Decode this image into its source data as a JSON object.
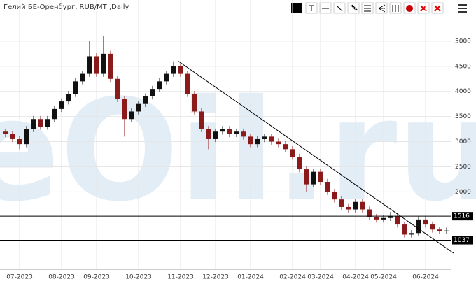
{
  "chart_data": {
    "type": "candlestick",
    "title": "Гелий БЕ-Оренбург, RUB/MT ,Daily",
    "watermark": "eOil.ru",
    "categories": [
      null,
      null,
      "07-2023",
      null,
      null,
      null,
      null,
      null,
      "08-2023",
      null,
      null,
      null,
      null,
      "09-2023",
      null,
      null,
      null,
      null,
      null,
      "10-2023",
      null,
      null,
      null,
      null,
      null,
      "11-2023",
      null,
      null,
      null,
      null,
      "12-2023",
      null,
      null,
      null,
      null,
      "01-2024",
      null,
      null,
      null,
      null,
      null,
      "02-2024",
      null,
      null,
      null,
      "03-2024",
      null,
      null,
      null,
      null,
      "04-2024",
      null,
      null,
      null,
      "05-2024",
      null,
      null,
      null,
      null,
      null,
      "06-2024",
      null,
      null,
      null
    ],
    "open": [
      3200,
      3150,
      3050,
      2950,
      3250,
      3450,
      3300,
      3450,
      3650,
      3800,
      3950,
      4200,
      4350,
      4700,
      4350,
      4750,
      4250,
      3850,
      3450,
      3600,
      3750,
      3900,
      4050,
      4200,
      4350,
      4500,
      4350,
      3950,
      3600,
      3250,
      3050,
      3200,
      3250,
      3150,
      3200,
      3100,
      2950,
      3050,
      3100,
      3000,
      2950,
      2850,
      2700,
      2450,
      2150,
      2400,
      2200,
      2000,
      1850,
      1700,
      1650,
      1800,
      1650,
      1500,
      1450,
      1480,
      1520,
      1350,
      1150,
      1180,
      1450,
      1350,
      1250,
      1220
    ],
    "high": [
      3260,
      3210,
      3110,
      3310,
      3510,
      3510,
      3510,
      3710,
      3860,
      4010,
      4260,
      4410,
      5000,
      4760,
      5100,
      4810,
      4310,
      3910,
      3660,
      3810,
      3960,
      4110,
      4260,
      4410,
      4600,
      4560,
      4410,
      4010,
      3660,
      3310,
      3260,
      3310,
      3310,
      3260,
      3260,
      3160,
      3110,
      3160,
      3160,
      3060,
      3010,
      2910,
      2760,
      2510,
      2460,
      2460,
      2260,
      2060,
      1910,
      1760,
      1860,
      1860,
      1710,
      1560,
      1540,
      1600,
      1580,
      1410,
      1240,
      1510,
      1510,
      1410,
      1310,
      1290
    ],
    "low": [
      3090,
      2990,
      2850,
      2890,
      3190,
      3240,
      3240,
      3390,
      3590,
      3740,
      3890,
      4140,
      4290,
      4290,
      4290,
      4190,
      3790,
      3100,
      3390,
      3540,
      3690,
      3840,
      3990,
      4140,
      4290,
      4290,
      3890,
      3540,
      3190,
      2850,
      2990,
      3140,
      3090,
      3090,
      3040,
      2890,
      2890,
      2990,
      2940,
      2890,
      2790,
      2640,
      2390,
      2000,
      2090,
      2140,
      1940,
      1790,
      1640,
      1590,
      1590,
      1590,
      1440,
      1390,
      1390,
      1420,
      1290,
      1090,
      1090,
      1120,
      1290,
      1190,
      1160,
      1160
    ],
    "close": [
      3150,
      3050,
      2950,
      3250,
      3450,
      3300,
      3450,
      3650,
      3800,
      3950,
      4200,
      4350,
      4700,
      4350,
      4750,
      4250,
      3850,
      3450,
      3600,
      3750,
      3900,
      4050,
      4200,
      4350,
      4500,
      4350,
      3950,
      3600,
      3250,
      3050,
      3200,
      3250,
      3150,
      3200,
      3100,
      2950,
      3050,
      3100,
      3000,
      2950,
      2850,
      2700,
      2450,
      2150,
      2400,
      2200,
      2000,
      1850,
      1700,
      1650,
      1800,
      1650,
      1500,
      1450,
      1480,
      1520,
      1350,
      1150,
      1180,
      1450,
      1350,
      1250,
      1220,
      1230
    ],
    "up_color": "#111111",
    "down_color": "#8b1a1a",
    "ylim": [
      460,
      5820
    ],
    "yticks": [
      2000,
      2500,
      3000,
      3500,
      4000,
      4500,
      5000
    ],
    "levels": [
      1516,
      1037
    ],
    "trendline": {
      "x": [
        24.7,
        64
      ],
      "y": [
        4600,
        780
      ]
    },
    "grid": true
  }
}
